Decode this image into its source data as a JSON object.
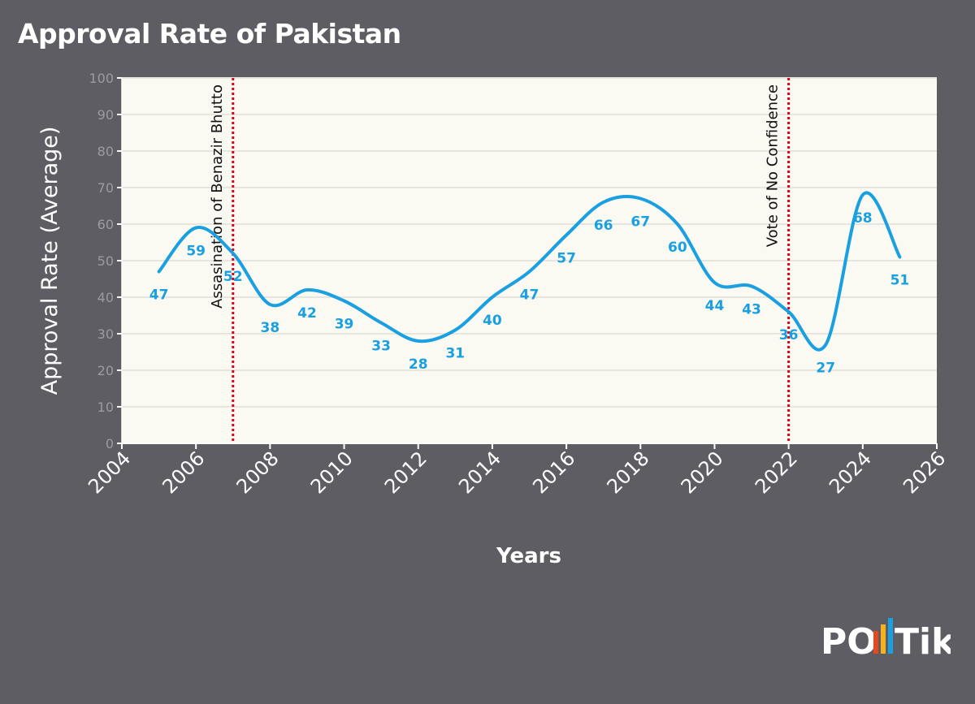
{
  "title": "Approval Rate of Pakistan",
  "chart_data": {
    "type": "line",
    "title": "Approval Rate of Pakistan",
    "xlabel": "Years",
    "ylabel": "Approval Rate (Average)",
    "xlim": [
      2004,
      2026
    ],
    "ylim": [
      0,
      100
    ],
    "xticks": [
      2004,
      2006,
      2008,
      2010,
      2012,
      2014,
      2016,
      2018,
      2020,
      2022,
      2024,
      2026
    ],
    "yticks": [
      0,
      10,
      20,
      30,
      40,
      50,
      60,
      70,
      80,
      90,
      100
    ],
    "grid": "horizontal",
    "series": [
      {
        "name": "Approval Rate",
        "color": "#1aa0e0",
        "x": [
          2005,
          2006,
          2007,
          2008,
          2009,
          2010,
          2011,
          2012,
          2013,
          2014,
          2015,
          2016,
          2017,
          2018,
          2019,
          2020,
          2021,
          2022,
          2023,
          2024,
          2025
        ],
        "values": [
          47,
          59,
          52,
          38,
          42,
          39,
          33,
          28,
          31,
          40,
          47,
          57,
          66,
          67,
          60,
          44,
          43,
          36,
          27,
          68,
          51
        ]
      }
    ],
    "annotations": [
      {
        "x": 2007,
        "label": "Assasination of Benazir Bhutto",
        "color": "#e0001a"
      },
      {
        "x": 2022,
        "label": "Vote of No Confidence",
        "color": "#e0001a"
      }
    ]
  },
  "logo": {
    "text_po": "PO",
    "text_tik": "Tik",
    "bar_colors": [
      "#e8491d",
      "#f5b21f",
      "#1aa0e0"
    ]
  }
}
